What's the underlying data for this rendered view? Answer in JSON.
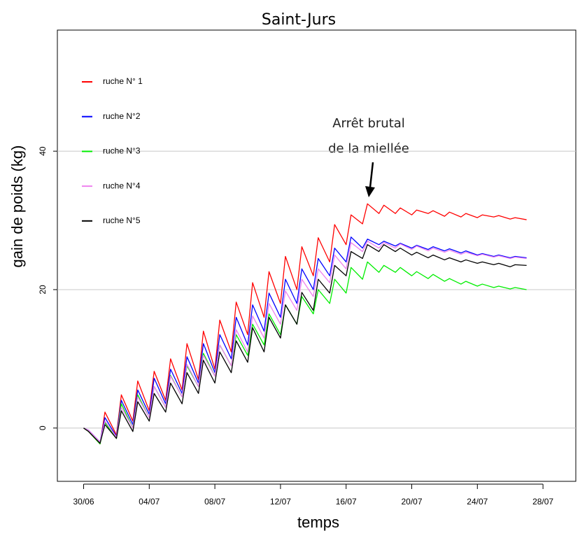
{
  "chart_data": {
    "type": "line",
    "title": "Saint-Jurs",
    "x_label": "temps",
    "y_label": "gain de poids (kg)",
    "annotation": [
      "Arrêt brutal",
      "de la miellée"
    ],
    "x": [
      0,
      0.3,
      1,
      1.3,
      2,
      2.3,
      3,
      3.3,
      4,
      4.3,
      5,
      5.3,
      6,
      6.3,
      7,
      7.3,
      8,
      8.3,
      9,
      9.3,
      10,
      10.3,
      11,
      11.3,
      12,
      12.3,
      13,
      13.3,
      14,
      14.3,
      15,
      15.3,
      16,
      16.3,
      17,
      17.3,
      18,
      18.3,
      19,
      19.3,
      20,
      20.3,
      21,
      21.3,
      22,
      22.3,
      23,
      23.3,
      24,
      24.3,
      25,
      25.3,
      26,
      26.3,
      27
    ],
    "xlim": [
      -1.6,
      30
    ],
    "xticks": [
      {
        "value": 0,
        "label": "30/06"
      },
      {
        "value": 4,
        "label": "04/07"
      },
      {
        "value": 8,
        "label": "08/07"
      },
      {
        "value": 12,
        "label": "12/07"
      },
      {
        "value": 16,
        "label": "16/07"
      },
      {
        "value": 20,
        "label": "20/07"
      },
      {
        "value": 24,
        "label": "24/07"
      },
      {
        "value": 28,
        "label": "28/07"
      }
    ],
    "ylim": [
      -7.7,
      57.5
    ],
    "yticks": [
      0,
      20,
      40
    ],
    "grid": true,
    "legend": "top-left",
    "series": [
      {
        "name": "ruche N° 1",
        "color": "#ff0000",
        "values": [
          0,
          -0.5,
          -2.3,
          2.3,
          -1,
          4.8,
          1,
          6.8,
          2.5,
          8.2,
          4,
          10,
          5.5,
          12.2,
          7,
          14,
          8.5,
          15.6,
          11,
          18.2,
          13.5,
          21,
          16,
          22.6,
          18,
          24.8,
          20,
          26.2,
          22,
          27.5,
          24,
          29.4,
          26.5,
          30.8,
          29.5,
          32.4,
          31,
          32.2,
          31,
          31.8,
          30.8,
          31.5,
          31,
          31.4,
          30.6,
          31.2,
          30.5,
          31,
          30.4,
          30.8,
          30.5,
          30.7,
          30.2,
          30.4,
          30.1
        ]
      },
      {
        "name": "ruche N°2",
        "color": "#0000ff",
        "values": [
          0,
          -0.3,
          -2,
          1.5,
          -1.2,
          4,
          0.5,
          5.5,
          2,
          7.2,
          3.5,
          8.5,
          5,
          10.3,
          6.5,
          12.2,
          8,
          13.5,
          10,
          16,
          12,
          17.8,
          14,
          19.5,
          16,
          21.5,
          18,
          23,
          20,
          24.5,
          22,
          26,
          24,
          27.6,
          26,
          27.3,
          26.5,
          27,
          26.3,
          26.7,
          26,
          26.4,
          25.8,
          26.2,
          25.6,
          25.9,
          25.3,
          25.6,
          25,
          25.2,
          24.8,
          25,
          24.6,
          24.8,
          24.6
        ]
      },
      {
        "name": "ruche N°3",
        "color": "#00ee00",
        "values": [
          0,
          -0.5,
          -2.3,
          0.8,
          -1.5,
          3.5,
          0,
          4.8,
          1.5,
          6,
          3,
          7.6,
          4.5,
          9,
          6,
          10.8,
          7.5,
          12,
          9,
          13.5,
          10.5,
          15,
          12,
          16.5,
          13.5,
          17.8,
          15,
          19,
          16.5,
          20,
          18,
          21.5,
          19.5,
          23.2,
          21.5,
          24,
          22.5,
          23.5,
          22.5,
          23.2,
          22,
          22.6,
          21.6,
          22.2,
          21.2,
          21.6,
          20.8,
          21.2,
          20.5,
          20.8,
          20.3,
          20.5,
          20.1,
          20.3,
          20
        ]
      },
      {
        "name": "ruche N°4",
        "color": "#ee82ee",
        "values": [
          0,
          -0.3,
          -2,
          1,
          -1.3,
          3,
          0,
          4.5,
          1.5,
          6,
          3,
          7.5,
          4.5,
          9.2,
          6,
          10.5,
          7.5,
          12,
          9,
          14.2,
          11,
          16.2,
          13,
          18,
          15,
          19.8,
          17,
          21.5,
          19,
          23,
          21,
          25,
          23,
          26.8,
          25.5,
          27,
          26,
          26.8,
          26,
          26.6,
          25.8,
          26.3,
          25.6,
          26,
          25.4,
          25.7,
          25.1,
          25.4,
          24.9,
          25.1,
          24.7,
          24.9,
          24.5,
          24.7,
          24.5
        ]
      },
      {
        "name": "ruche N°5",
        "color": "#000000",
        "values": [
          0,
          -0.5,
          -2.2,
          0.5,
          -1.5,
          2.5,
          -0.5,
          3.8,
          1,
          5,
          2.3,
          6.5,
          3.5,
          8,
          5,
          9.8,
          6.5,
          11,
          8,
          12.6,
          9.5,
          14.5,
          11,
          16,
          13,
          17.8,
          15,
          19.6,
          17,
          21.5,
          19.5,
          23.5,
          22,
          25.5,
          24.5,
          26.5,
          25.5,
          26.5,
          25.5,
          26,
          25,
          25.4,
          24.6,
          25,
          24.3,
          24.6,
          24,
          24.3,
          23.8,
          24,
          23.6,
          23.8,
          23.3,
          23.6,
          23.5
        ]
      }
    ]
  }
}
